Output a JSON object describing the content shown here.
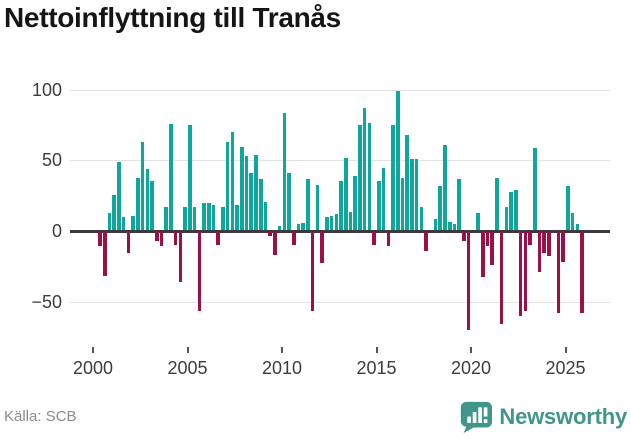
{
  "header": {
    "title": "Nettoinflyttning till Tranås"
  },
  "footer": {
    "source": "Källa: SCB",
    "brand": "Newsworthy"
  },
  "colors": {
    "positive": "#0EA79B",
    "negative": "#9B1146",
    "brand": "#3F9689",
    "axis_line": "#3A3A3A",
    "gridline": "#E3E3E3",
    "tick_label": "#3D3D3D",
    "source_label": "#8C8C8C"
  },
  "chart_data": {
    "type": "bar",
    "title": "Nettoinflyttning till Tranås",
    "xlabel": "",
    "ylabel": "",
    "x_unit": "quarter",
    "grid": true,
    "legend": false,
    "ylim": [
      -75,
      110
    ],
    "y_ticks": [
      100,
      50,
      0,
      -50
    ],
    "y_tick_labels": [
      "100",
      "50",
      "0",
      "−50"
    ],
    "x_tick_labels": [
      "2000",
      "2005",
      "2010",
      "2015",
      "2020",
      "2025"
    ],
    "x_tick_years": [
      2000,
      2005,
      2010,
      2015,
      2020,
      2025
    ],
    "positive_color": "#0EA79B",
    "negative_color": "#9B1146",
    "categories": [
      "2000Q1",
      "2000Q2",
      "2000Q3",
      "2000Q4",
      "2001Q1",
      "2001Q2",
      "2001Q3",
      "2001Q4",
      "2002Q1",
      "2002Q2",
      "2002Q3",
      "2002Q4",
      "2003Q1",
      "2003Q2",
      "2003Q3",
      "2003Q4",
      "2004Q1",
      "2004Q2",
      "2004Q3",
      "2004Q4",
      "2005Q1",
      "2005Q2",
      "2005Q3",
      "2005Q4",
      "2006Q1",
      "2006Q2",
      "2006Q3",
      "2006Q4",
      "2007Q1",
      "2007Q2",
      "2007Q3",
      "2007Q4",
      "2008Q1",
      "2008Q2",
      "2008Q3",
      "2008Q4",
      "2009Q1",
      "2009Q2",
      "2009Q3",
      "2009Q4",
      "2010Q1",
      "2010Q2",
      "2010Q3",
      "2010Q4",
      "2011Q1",
      "2011Q2",
      "2011Q3",
      "2011Q4",
      "2012Q1",
      "2012Q2",
      "2012Q3",
      "2012Q4",
      "2013Q1",
      "2013Q2",
      "2013Q3",
      "2013Q4",
      "2014Q1",
      "2014Q2",
      "2014Q3",
      "2014Q4",
      "2015Q1",
      "2015Q2",
      "2015Q3",
      "2015Q4",
      "2016Q1",
      "2016Q2",
      "2016Q3",
      "2016Q4",
      "2017Q1",
      "2017Q2",
      "2017Q3",
      "2017Q4",
      "2018Q1",
      "2018Q2",
      "2018Q3",
      "2018Q4",
      "2019Q1",
      "2019Q2",
      "2019Q3",
      "2019Q4",
      "2020Q1",
      "2020Q2",
      "2020Q3",
      "2020Q4",
      "2021Q1",
      "2021Q2",
      "2021Q3",
      "2021Q4",
      "2022Q1",
      "2022Q2",
      "2022Q3",
      "2022Q4",
      "2023Q1",
      "2023Q2",
      "2023Q3",
      "2023Q4",
      "2024Q1",
      "2024Q2",
      "2024Q3",
      "2024Q4",
      "2025Q1",
      "2025Q2",
      "2025Q3",
      "2025Q4"
    ],
    "values": [
      0,
      -10,
      -31,
      12,
      25,
      48,
      9,
      -15,
      10,
      37,
      62,
      43,
      35,
      -6,
      -10,
      16,
      75,
      -9,
      -35,
      16,
      74,
      16,
      -56,
      19,
      19,
      18,
      -9,
      16,
      62,
      69,
      18,
      59,
      52,
      40,
      53,
      36,
      20,
      -3,
      -16,
      3,
      83,
      40,
      -9,
      4,
      5,
      36,
      -56,
      32,
      -22,
      9,
      10,
      11,
      35,
      51,
      13,
      38,
      74,
      86,
      76,
      -9,
      35,
      44,
      -10,
      74,
      98,
      37,
      67,
      50,
      50,
      16,
      -13,
      0,
      8,
      31,
      60,
      6,
      4,
      36,
      -6,
      -69,
      0,
      12,
      -32,
      -10,
      -23,
      37,
      -65,
      16,
      27,
      28,
      -59,
      -56,
      -9,
      58,
      -28,
      -15,
      -17,
      0,
      -57,
      -21,
      31,
      12,
      4,
      -57
    ]
  }
}
